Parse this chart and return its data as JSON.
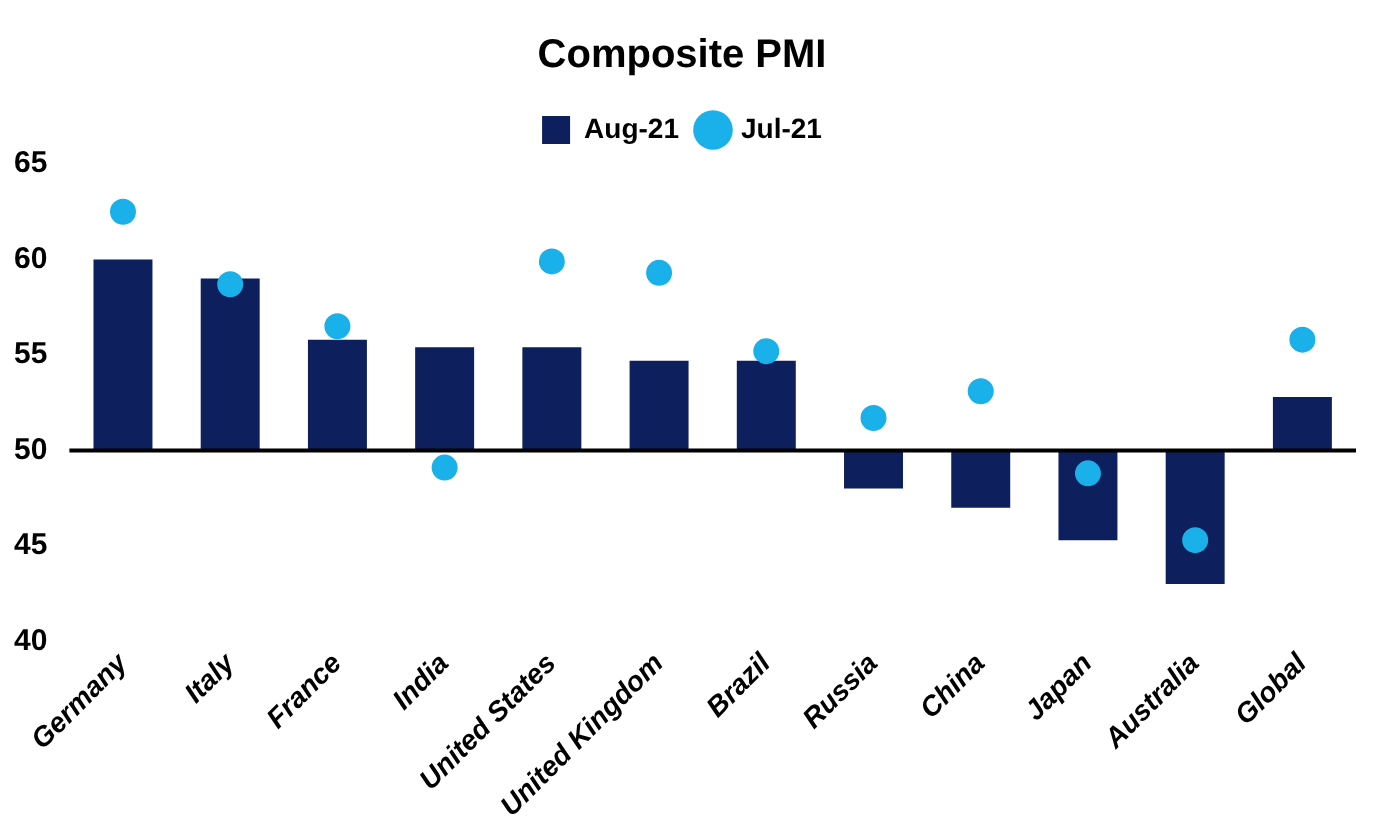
{
  "chart_data": {
    "type": "bar",
    "title": "Composite PMI",
    "categories": [
      "Germany",
      "Italy",
      "France",
      "India",
      "United States",
      "United Kingdom",
      "Brazil",
      "Russia",
      "China",
      "Japan",
      "Australia",
      "Global"
    ],
    "series": [
      {
        "name": "Aug-21",
        "color": "#0d1f5c",
        "base": [
          50,
          50,
          50,
          50,
          50,
          50,
          50,
          50,
          50,
          50,
          50,
          50
        ],
        "values": [
          10.0,
          9.0,
          5.8,
          5.4,
          5.4,
          4.7,
          4.7,
          -2.0,
          -3.0,
          -4.7,
          -7.0,
          2.8
        ]
      },
      {
        "name": "Jul-21",
        "type": "scatter",
        "color": "#1ab0ea",
        "x": [
          "Germany",
          "Italy",
          "France",
          "India",
          "United States",
          "United Kingdom",
          "Brazil",
          "Russia",
          "China",
          "Japan",
          "Australia",
          "Global"
        ],
        "values": [
          62.5,
          58.7,
          56.5,
          49.1,
          59.9,
          59.3,
          55.2,
          51.7,
          53.1,
          48.8,
          45.3,
          55.8
        ]
      }
    ],
    "ylim": [
      40,
      65
    ],
    "yticks": [
      40,
      45,
      50,
      55,
      60,
      65
    ],
    "grid": false,
    "legend": "top",
    "marker": "circle",
    "ref_lines": [
      {
        "axis": "y",
        "value": 50,
        "color": "#000000"
      }
    ]
  }
}
